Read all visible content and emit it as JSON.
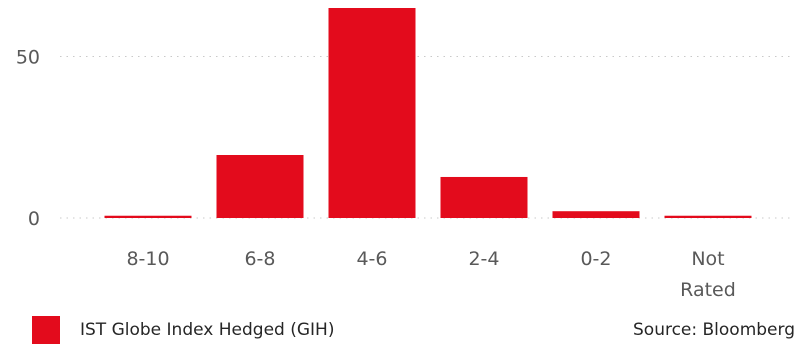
{
  "chart_data": {
    "type": "bar",
    "categories": [
      "8-10",
      "6-8",
      "4-6",
      "2-4",
      "0-2",
      "Not Rated"
    ],
    "category_lines": [
      [
        "8-10"
      ],
      [
        "6-8"
      ],
      [
        "4-6"
      ],
      [
        "2-4"
      ],
      [
        "0-2"
      ],
      [
        "Not",
        "Rated"
      ]
    ],
    "series": [
      {
        "name": "IST Globe Index Hedged (GIH)",
        "values": [
          0.7,
          19.5,
          65,
          12.7,
          2.1,
          0.7
        ],
        "color": "#e30b1c"
      }
    ],
    "y_ticks": [
      0,
      50
    ],
    "ylim": [
      0,
      65
    ],
    "grid": true,
    "legend_position": "bottom-left"
  },
  "legend": {
    "label": "IST Globe Index Hedged (GIH)"
  },
  "source": "Source: Bloomberg"
}
